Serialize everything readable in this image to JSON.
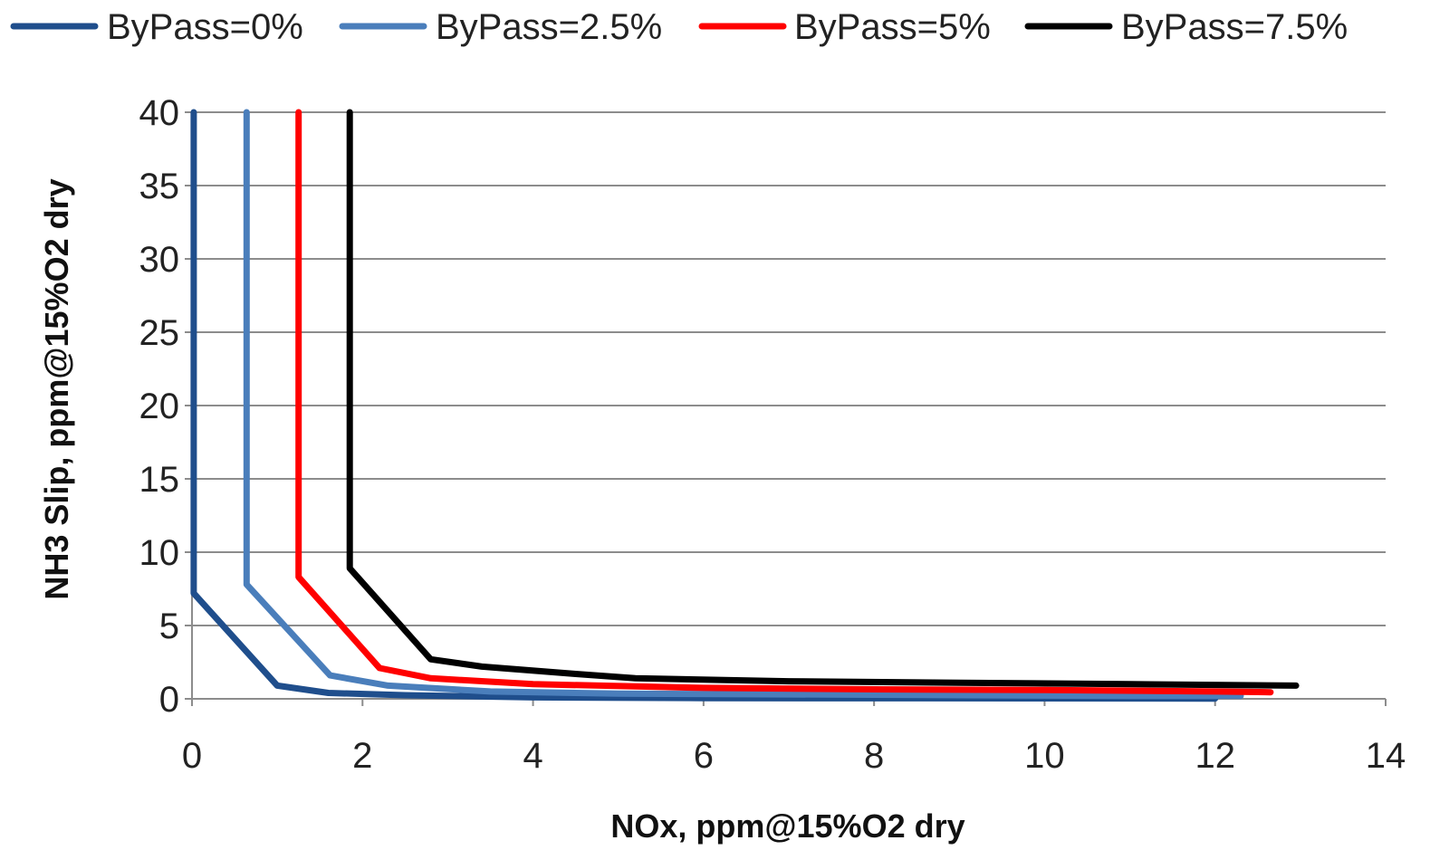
{
  "chart_data": {
    "type": "line",
    "title": "",
    "xlabel": "NOx, ppm@15%O2 dry",
    "ylabel": "NH3 Slip, ppm@15%O2 dry",
    "xlim": [
      0,
      14
    ],
    "ylim": [
      0,
      40
    ],
    "x_ticks": [
      "0",
      "2",
      "4",
      "6",
      "8",
      "10",
      "12",
      "14"
    ],
    "y_ticks": [
      "0",
      "5",
      "10",
      "15",
      "20",
      "25",
      "30",
      "35",
      "40"
    ],
    "grid": true,
    "legend_position": "top",
    "series": [
      {
        "name": "ByPass=0%",
        "color": "#1f4e8c",
        "points": [
          [
            0.02,
            40
          ],
          [
            0.02,
            7.2
          ],
          [
            1.0,
            0.9
          ],
          [
            1.6,
            0.4
          ],
          [
            2.5,
            0.25
          ],
          [
            4,
            0.1
          ],
          [
            6,
            0.05
          ],
          [
            8,
            0.04
          ],
          [
            10,
            0.03
          ],
          [
            12,
            0.02
          ]
        ]
      },
      {
        "name": "ByPass=2.5%",
        "color": "#4a7ebb",
        "points": [
          [
            0.64,
            40
          ],
          [
            0.64,
            7.8
          ],
          [
            1.62,
            1.6
          ],
          [
            2.3,
            0.9
          ],
          [
            3.5,
            0.5
          ],
          [
            5,
            0.35
          ],
          [
            7,
            0.3
          ],
          [
            9,
            0.25
          ],
          [
            11,
            0.2
          ],
          [
            12.3,
            0.2
          ]
        ]
      },
      {
        "name": "ByPass=5%",
        "color": "#ff0000",
        "points": [
          [
            1.25,
            40
          ],
          [
            1.25,
            8.3
          ],
          [
            2.2,
            2.1
          ],
          [
            2.8,
            1.4
          ],
          [
            4,
            1.0
          ],
          [
            6,
            0.75
          ],
          [
            8,
            0.65
          ],
          [
            10,
            0.6
          ],
          [
            12,
            0.5
          ],
          [
            12.65,
            0.45
          ]
        ]
      },
      {
        "name": "ByPass=7.5%",
        "color": "#000000",
        "points": [
          [
            1.85,
            40
          ],
          [
            1.85,
            8.9
          ],
          [
            2.8,
            2.7
          ],
          [
            3.4,
            2.2
          ],
          [
            4.5,
            1.7
          ],
          [
            5.2,
            1.4
          ],
          [
            7,
            1.2
          ],
          [
            9,
            1.1
          ],
          [
            11,
            1.0
          ],
          [
            12.95,
            0.9
          ]
        ]
      }
    ]
  }
}
